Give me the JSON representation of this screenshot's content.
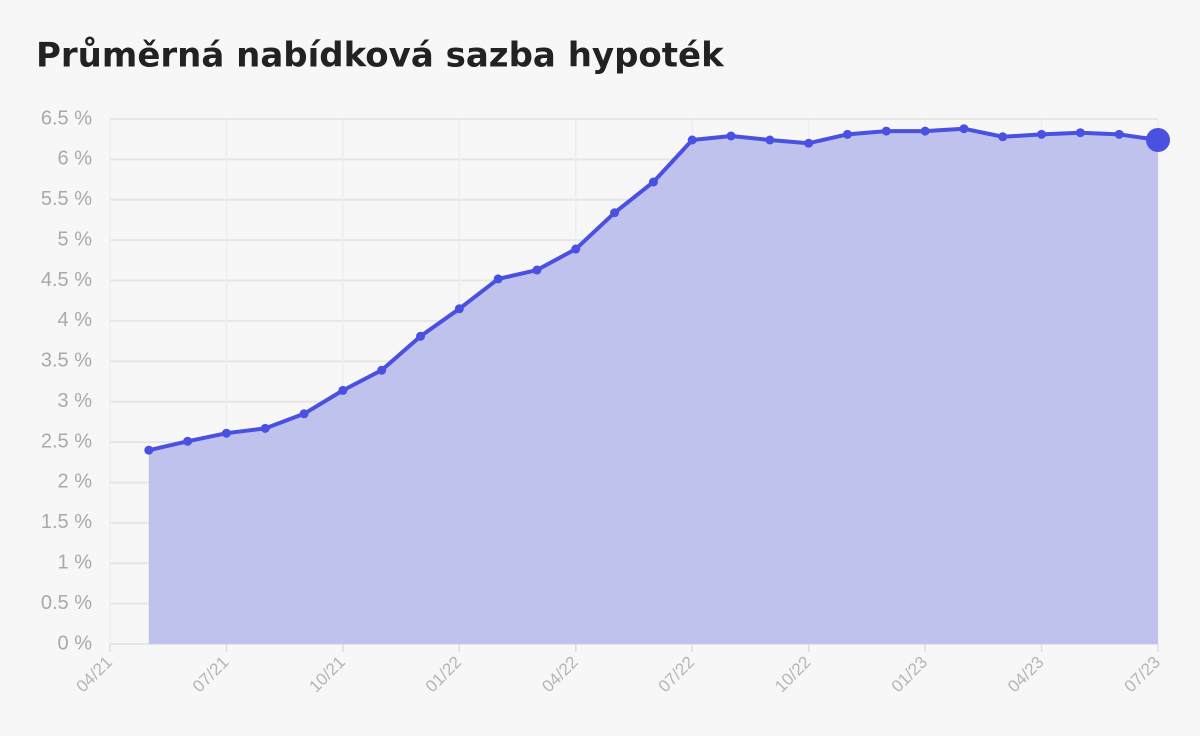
{
  "chart_data": {
    "type": "line",
    "title": "Průměrná nabídková sazba hypoték",
    "x": [
      "2021-05",
      "2021-06",
      "2021-07",
      "2021-08",
      "2021-09",
      "2021-10",
      "2021-11",
      "2021-12",
      "2022-01",
      "2022-02",
      "2022-03",
      "2022-04",
      "2022-05",
      "2022-06",
      "2022-07",
      "2022-08",
      "2022-09",
      "2022-10",
      "2022-11",
      "2022-12",
      "2023-01",
      "2023-02",
      "2023-03",
      "2023-04",
      "2023-05",
      "2023-06",
      "2023-07"
    ],
    "series": [
      {
        "color": "#4a50e0",
        "values": [
          2.4,
          2.51,
          2.61,
          2.67,
          2.85,
          3.14,
          3.39,
          3.81,
          4.15,
          4.52,
          4.63,
          4.89,
          5.34,
          5.72,
          6.24,
          6.29,
          6.24,
          6.2,
          6.31,
          6.35,
          6.35,
          6.38,
          6.28,
          6.31,
          6.33,
          6.31,
          6.24
        ]
      }
    ],
    "area_color": "#c0c2ee",
    "xlim": [
      "2021-04",
      "2023-07"
    ],
    "xticks": [
      {
        "value": "2021-04",
        "label": "04/21"
      },
      {
        "value": "2021-07",
        "label": "07/21"
      },
      {
        "value": "2021-10",
        "label": "10/21"
      },
      {
        "value": "2022-01",
        "label": "01/22"
      },
      {
        "value": "2022-04",
        "label": "04/22"
      },
      {
        "value": "2022-07",
        "label": "07/22"
      },
      {
        "value": "2022-10",
        "label": "10/22"
      },
      {
        "value": "2023-01",
        "label": "01/23"
      },
      {
        "value": "2023-04",
        "label": "04/23"
      },
      {
        "value": "2023-07",
        "label": "07/23"
      }
    ],
    "ylim": [
      0,
      6.5
    ],
    "yticks": [
      {
        "value": 0,
        "label": "0 %"
      },
      {
        "value": 0.5,
        "label": "0.5 %"
      },
      {
        "value": 1,
        "label": "1 %"
      },
      {
        "value": 1.5,
        "label": "1.5 %"
      },
      {
        "value": 2,
        "label": "2 %"
      },
      {
        "value": 2.5,
        "label": "2.5 %"
      },
      {
        "value": 3,
        "label": "3 %"
      },
      {
        "value": 3.5,
        "label": "3.5 %"
      },
      {
        "value": 4,
        "label": "4 %"
      },
      {
        "value": 4.5,
        "label": "4.5 %"
      },
      {
        "value": 5,
        "label": "5 %"
      },
      {
        "value": 5.5,
        "label": "5.5 %"
      },
      {
        "value": 6,
        "label": "6 %"
      },
      {
        "value": 6.5,
        "label": "6.5 %"
      }
    ],
    "grid": true
  }
}
